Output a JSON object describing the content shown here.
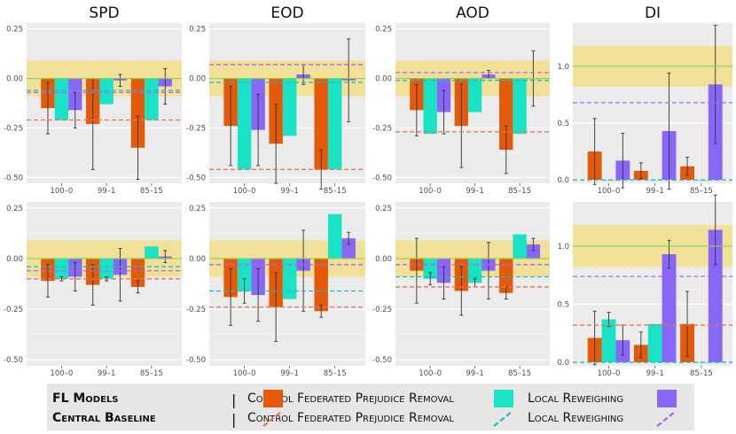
{
  "chart_data": {
    "type": "bar",
    "column_titles": [
      "SPD",
      "EOD",
      "AOD",
      "DI"
    ],
    "categories": [
      "100–0",
      "99–1",
      "85–15"
    ],
    "series_names": [
      "Control",
      "Federated Prejudice Removal",
      "Local Reweighing"
    ],
    "colors": {
      "control": "#e35a0b",
      "fpr": "#19e3c4",
      "lr": "#8866f7",
      "control_line": "#e8725c",
      "fpr_line": "#2ab5c5",
      "lr_line": "#a867f0",
      "fair_band": "#f2de88",
      "fair_line": "#8fd14f",
      "panel_bg": "#ebebeb"
    },
    "panels": [
      {
        "row": 0,
        "metric": "SPD",
        "ylim": [
          -0.53,
          0.28
        ],
        "yticks": [
          0.25,
          0.0,
          -0.25,
          -0.5
        ],
        "ytick_labels": [
          "0.25",
          "0.00",
          "-0.25",
          "-0.50"
        ],
        "band": [
          -0.09,
          0.09
        ],
        "fair_value": 0,
        "baselines": {
          "control": -0.21,
          "fpr": -0.06,
          "lr": -0.07
        },
        "values": {
          "control": [
            -0.15,
            -0.23,
            -0.35
          ],
          "fpr": [
            -0.21,
            -0.13,
            -0.21
          ],
          "lr": [
            -0.16,
            -0.01,
            -0.04
          ]
        },
        "errors": {
          "control": [
            0.13,
            0.23,
            0.16
          ],
          "fpr": [
            0.0,
            0.0,
            0.0
          ],
          "lr": [
            0.09,
            0.03,
            0.09
          ]
        }
      },
      {
        "row": 0,
        "metric": "EOD",
        "ylim": [
          -0.53,
          0.28
        ],
        "yticks": [
          0.25,
          0.0,
          -0.25,
          -0.5
        ],
        "ytick_labels": [
          "0.25",
          "0.00",
          "-0.25",
          "-0.50"
        ],
        "band": [
          -0.09,
          0.09
        ],
        "fair_value": 0,
        "baselines": {
          "control": -0.46,
          "fpr": -0.02,
          "lr": 0.07
        },
        "values": {
          "control": [
            -0.24,
            -0.33,
            -0.46
          ],
          "fpr": [
            -0.46,
            -0.29,
            -0.46
          ],
          "lr": [
            -0.26,
            0.02,
            -0.01
          ]
        },
        "errors": {
          "control": [
            0.2,
            0.2,
            0.1
          ],
          "fpr": [
            0.0,
            0.0,
            0.0
          ],
          "lr": [
            0.18,
            0.05,
            0.21
          ]
        }
      },
      {
        "row": 0,
        "metric": "AOD",
        "ylim": [
          -0.53,
          0.28
        ],
        "yticks": [
          0.25,
          0.0,
          -0.25,
          -0.5
        ],
        "ytick_labels": [
          "0.25",
          "0.00",
          "-0.25",
          "-0.50"
        ],
        "band": [
          -0.09,
          0.09
        ],
        "fair_value": 0,
        "baselines": {
          "control": -0.27,
          "fpr": -0.01,
          "lr": 0.03
        },
        "values": {
          "control": [
            -0.16,
            -0.24,
            -0.36
          ],
          "fpr": [
            -0.28,
            -0.17,
            -0.28
          ],
          "lr": [
            -0.17,
            0.02,
            -0.0
          ]
        },
        "errors": {
          "control": [
            0.13,
            0.21,
            0.12
          ],
          "fpr": [
            0.0,
            0.0,
            0.0
          ],
          "lr": [
            0.11,
            0.02,
            0.14
          ]
        }
      },
      {
        "row": 0,
        "metric": "DI",
        "ylim": [
          -0.03,
          1.38
        ],
        "yticks": [
          1.0,
          0.5,
          0.0
        ],
        "ytick_labels": [
          "1.0",
          "0.5",
          "0.0"
        ],
        "band": [
          0.82,
          1.18
        ],
        "fair_value": 1,
        "baselines": {
          "control": 0.0,
          "fpr": 0.0,
          "lr": 0.68
        },
        "values": {
          "control": [
            0.25,
            0.08,
            0.12
          ],
          "fpr": [
            0.0,
            0.0,
            0.0
          ],
          "lr": [
            0.17,
            0.43,
            0.84
          ]
        },
        "errors": {
          "control": [
            0.29,
            0.07,
            0.08
          ],
          "fpr": [
            0.0,
            0.0,
            0.0
          ],
          "lr": [
            0.24,
            0.51,
            0.52
          ]
        }
      },
      {
        "row": 1,
        "metric": "SPD",
        "ylim": [
          -0.53,
          0.28
        ],
        "yticks": [
          0.25,
          0.0,
          -0.25,
          -0.5
        ],
        "ytick_labels": [
          "0.25",
          "0.00",
          "-0.25",
          "-0.50"
        ],
        "band": [
          -0.09,
          0.09
        ],
        "fair_value": 0,
        "baselines": {
          "control": -0.1,
          "fpr": -0.04,
          "lr": -0.06
        },
        "values": {
          "control": [
            -0.11,
            -0.13,
            -0.14
          ],
          "fpr": [
            -0.1,
            -0.1,
            0.06
          ],
          "lr": [
            -0.09,
            -0.08,
            0.01
          ]
        },
        "errors": {
          "control": [
            0.08,
            0.1,
            0.03
          ],
          "fpr": [
            0.01,
            0.01,
            0.0
          ],
          "lr": [
            0.07,
            0.13,
            0.03
          ]
        }
      },
      {
        "row": 1,
        "metric": "EOD",
        "ylim": [
          -0.53,
          0.28
        ],
        "yticks": [
          0.25,
          0.0,
          -0.25,
          -0.5
        ],
        "ytick_labels": [
          "0.25",
          "0.00",
          "-0.25",
          "-0.50"
        ],
        "band": [
          -0.09,
          0.09
        ],
        "fair_value": 0,
        "baselines": {
          "control": -0.24,
          "fpr": -0.16,
          "lr": -0.03
        },
        "values": {
          "control": [
            -0.19,
            -0.24,
            -0.26
          ],
          "fpr": [
            -0.16,
            -0.2,
            0.22
          ],
          "lr": [
            -0.18,
            -0.06,
            0.1
          ]
        },
        "errors": {
          "control": [
            0.14,
            0.17,
            0.03
          ],
          "fpr": [
            0.06,
            0.0,
            0.0
          ],
          "lr": [
            0.13,
            0.2,
            0.03
          ]
        }
      },
      {
        "row": 1,
        "metric": "AOD",
        "ylim": [
          -0.53,
          0.28
        ],
        "yticks": [
          0.25,
          0.0,
          -0.25,
          -0.5
        ],
        "ytick_labels": [
          "0.25",
          "0.00",
          "-0.25",
          "-0.50"
        ],
        "band": [
          -0.09,
          0.09
        ],
        "fair_value": 0,
        "baselines": {
          "control": -0.14,
          "fpr": -0.09,
          "lr": -0.03
        },
        "values": {
          "control": [
            -0.06,
            -0.16,
            -0.17
          ],
          "fpr": [
            -0.1,
            -0.12,
            0.12
          ],
          "lr": [
            -0.12,
            -0.06,
            0.07
          ]
        },
        "errors": {
          "control": [
            0.16,
            0.12,
            0.03
          ],
          "fpr": [
            0.03,
            0.02,
            0.0
          ],
          "lr": [
            0.08,
            0.14,
            0.03
          ]
        }
      },
      {
        "row": 1,
        "metric": "DI",
        "ylim": [
          -0.03,
          1.38
        ],
        "yticks": [
          1.0,
          0.5,
          0.0
        ],
        "ytick_labels": [
          "1.0",
          "0.5",
          "0.0"
        ],
        "band": [
          0.82,
          1.18
        ],
        "fair_value": 1,
        "baselines": {
          "control": 0.32,
          "fpr": 0.0,
          "lr": 0.74
        },
        "values": {
          "control": [
            0.21,
            0.15,
            0.33
          ],
          "fpr": [
            0.37,
            0.33,
            0.0
          ],
          "lr": [
            0.19,
            0.93,
            1.14
          ]
        },
        "errors": {
          "control": [
            0.23,
            0.11,
            0.28
          ],
          "fpr": [
            0.06,
            0.0,
            0.0
          ],
          "lr": [
            0.13,
            0.12,
            0.3
          ]
        }
      }
    ]
  },
  "legend": {
    "row1_title": "FL Models",
    "row2_title": "Central Baseline",
    "separator": "|",
    "control": "Control",
    "fpr": "Federated Prejudice Removal",
    "lr": "Local Reweighing"
  }
}
